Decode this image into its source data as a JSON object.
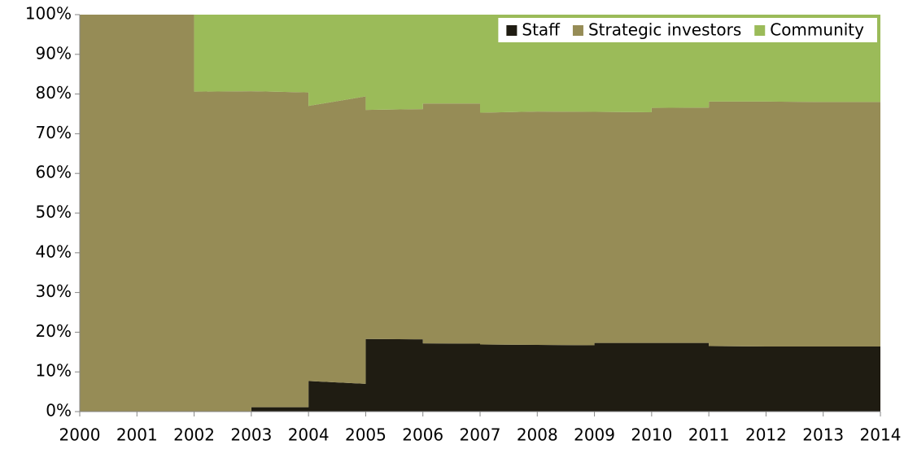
{
  "chart_data": {
    "type": "stacked_area",
    "x": [
      2000,
      2002,
      2002,
      2003,
      2003,
      2004,
      2004,
      2005,
      2005,
      2006,
      2006,
      2007,
      2007,
      2008,
      2009,
      2009,
      2010,
      2010,
      2011,
      2011,
      2012,
      2013,
      2014
    ],
    "series": [
      {
        "name": "Staff",
        "color": "#1f1c12",
        "values": [
          0,
          0,
          0,
          0,
          1.1,
          1.1,
          7.7,
          7.0,
          18.3,
          18.2,
          17.2,
          17.1,
          16.9,
          16.8,
          16.7,
          17.3,
          17.3,
          17.3,
          17.3,
          16.5,
          16.4,
          16.4,
          16.4
        ]
      },
      {
        "name": "Strategic investors",
        "color": "#968c56",
        "values": [
          100,
          100,
          80.6,
          80.7,
          79.6,
          79.3,
          69.3,
          72.4,
          57.7,
          58.0,
          60.4,
          60.5,
          58.4,
          58.8,
          58.8,
          58.2,
          58.1,
          59.2,
          59.3,
          61.6,
          61.7,
          61.6,
          61.6
        ]
      },
      {
        "name": "Community",
        "color": "#9bbb59",
        "values": [
          0,
          0,
          19.4,
          19.3,
          19.3,
          19.6,
          23.0,
          20.6,
          24.0,
          23.8,
          22.4,
          22.4,
          24.7,
          24.4,
          24.5,
          24.5,
          24.6,
          23.5,
          23.4,
          21.9,
          21.9,
          22.0,
          22.0
        ]
      }
    ],
    "xlim": [
      2000,
      2014
    ],
    "xticks": [
      2000,
      2001,
      2002,
      2003,
      2004,
      2005,
      2006,
      2007,
      2008,
      2009,
      2010,
      2011,
      2012,
      2013,
      2014
    ],
    "ylim": [
      0,
      100
    ],
    "yticks": [
      {
        "value": 0,
        "label": "0%"
      },
      {
        "value": 10,
        "label": "10%"
      },
      {
        "value": 20,
        "label": "20%"
      },
      {
        "value": 30,
        "label": "30%"
      },
      {
        "value": 40,
        "label": "40%"
      },
      {
        "value": 50,
        "label": "50%"
      },
      {
        "value": 60,
        "label": "60%"
      },
      {
        "value": 70,
        "label": "70%"
      },
      {
        "value": 80,
        "label": "80%"
      },
      {
        "value": 90,
        "label": "90%"
      },
      {
        "value": 100,
        "label": "100%"
      }
    ],
    "legend": "top-right",
    "grid": false
  }
}
